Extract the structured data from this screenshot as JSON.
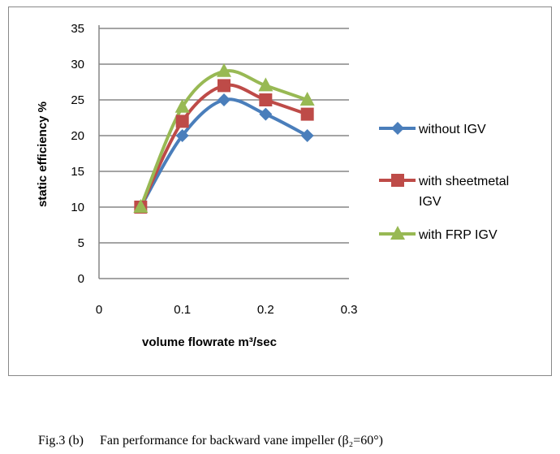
{
  "chart_data": {
    "type": "line",
    "xlabel": "volume flowrate m³/sec",
    "ylabel": "static efficiency %",
    "xlim": [
      0,
      0.3
    ],
    "ylim": [
      0,
      35
    ],
    "xticks": [
      "0",
      "0.1",
      "0.2",
      "0.3"
    ],
    "yticks": [
      "0",
      "5",
      "10",
      "15",
      "20",
      "25",
      "30",
      "35"
    ],
    "grid": "horizontal",
    "legend_position": "right",
    "x": [
      0.05,
      0.1,
      0.15,
      0.2,
      0.25
    ],
    "series": [
      {
        "name": "without IGV",
        "legend_lines": [
          "without IGV"
        ],
        "color": "#4a7ebb",
        "marker": "diamond",
        "values": [
          10,
          20,
          25,
          23,
          20
        ]
      },
      {
        "name": "with sheetmetal IGV",
        "legend_lines": [
          "with sheetmetal",
          "IGV"
        ],
        "color": "#be4b48",
        "marker": "square",
        "values": [
          10,
          22,
          27,
          25,
          23
        ]
      },
      {
        "name": "with FRP IGV",
        "legend_lines": [
          "with FRP IGV"
        ],
        "color": "#98b954",
        "marker": "triangle",
        "values": [
          10,
          24,
          29,
          27,
          25
        ]
      }
    ]
  },
  "caption": "Fig.3 (b)     Fan performance for backward vane impeller (β₂=60°)"
}
